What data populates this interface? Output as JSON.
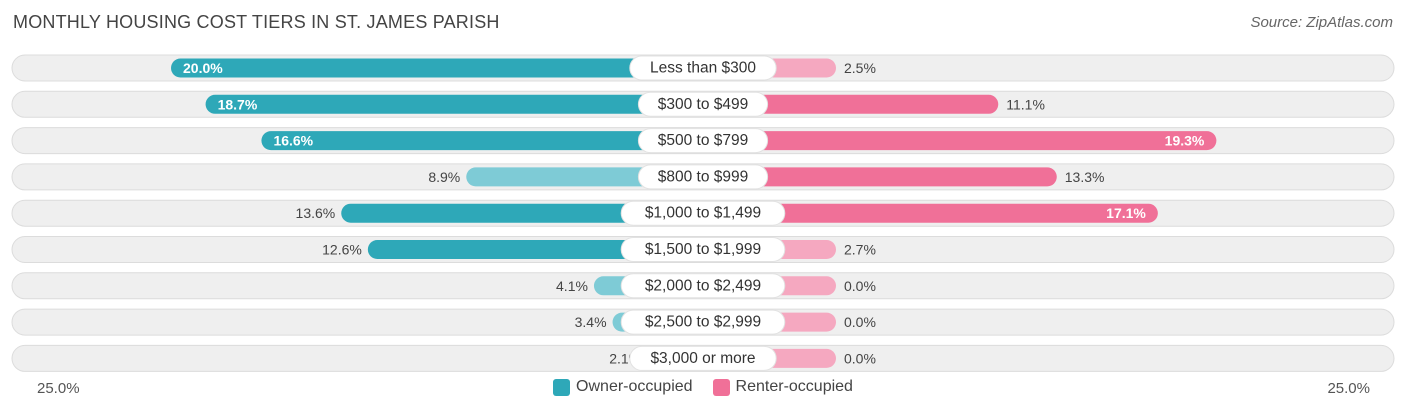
{
  "header": {
    "title": "MONTHLY HOUSING COST TIERS IN ST. JAMES PARISH",
    "source": "Source: ZipAtlas.com"
  },
  "axis": {
    "left_label": "25.0%",
    "right_label": "25.0%"
  },
  "legend": {
    "owner_label": "Owner-occupied",
    "renter_label": "Renter-occupied"
  },
  "colors": {
    "owner_strong": "#2ea8b8",
    "owner_light": "#7ecbd6",
    "renter_strong": "#f07098",
    "renter_light": "#f5a8c0",
    "row_bg": "#efefef",
    "row_border": "#dcdcdc"
  },
  "chart_data": {
    "type": "bar",
    "orientation": "diverging-horizontal",
    "xlim": [
      -25,
      25
    ],
    "categories": [
      "Less than $300",
      "$300 to $499",
      "$500 to $799",
      "$800 to $999",
      "$1,000 to $1,499",
      "$1,500 to $1,999",
      "$2,000 to $2,499",
      "$2,500 to $2,999",
      "$3,000 or more"
    ],
    "series": [
      {
        "name": "Owner-occupied",
        "values": [
          20.0,
          18.7,
          16.6,
          8.9,
          13.6,
          12.6,
          4.1,
          3.4,
          2.1
        ],
        "labels": [
          "20.0%",
          "18.7%",
          "16.6%",
          "8.9%",
          "13.6%",
          "12.6%",
          "4.1%",
          "3.4%",
          "2.1%"
        ]
      },
      {
        "name": "Renter-occupied",
        "values": [
          2.5,
          11.1,
          19.3,
          13.3,
          17.1,
          2.7,
          0.0,
          0.0,
          0.0
        ],
        "labels": [
          "2.5%",
          "11.1%",
          "19.3%",
          "13.3%",
          "17.1%",
          "2.7%",
          "0.0%",
          "0.0%",
          "0.0%"
        ]
      }
    ]
  }
}
